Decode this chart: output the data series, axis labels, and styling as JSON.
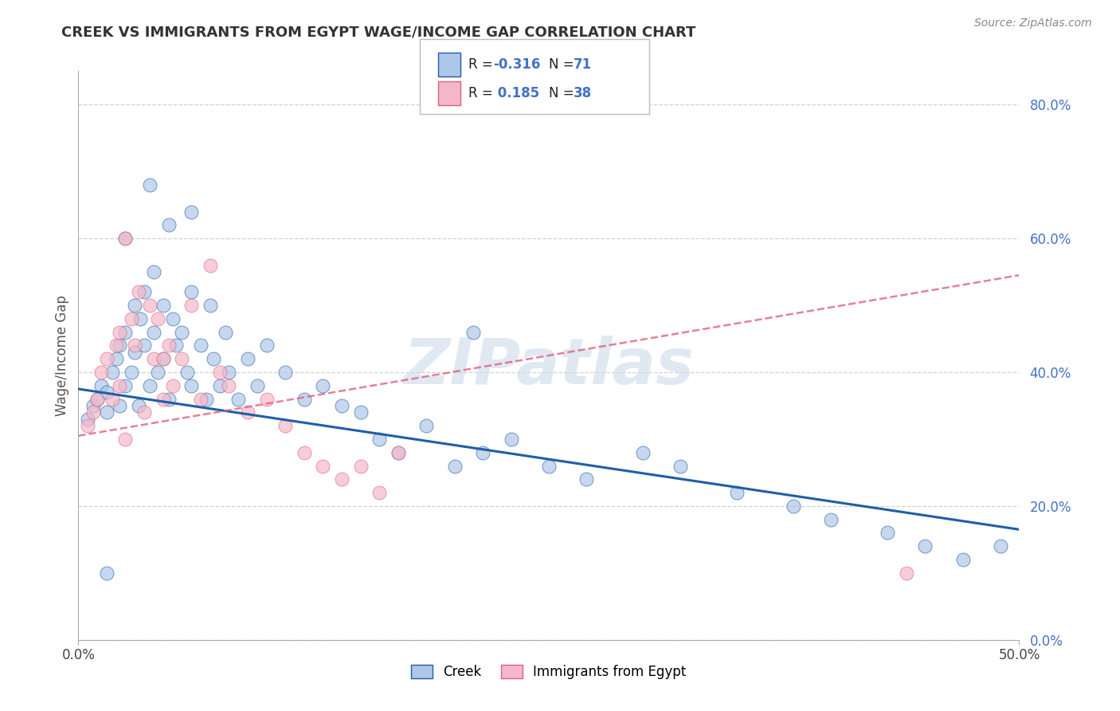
{
  "title": "CREEK VS IMMIGRANTS FROM EGYPT WAGE/INCOME GAP CORRELATION CHART",
  "source": "Source: ZipAtlas.com",
  "ylabel": "Wage/Income Gap",
  "watermark": "ZIPatlas",
  "legend_label1": "Creek",
  "legend_label2": "Immigrants from Egypt",
  "xmin": 0.0,
  "xmax": 0.5,
  "ymin": 0.0,
  "ymax": 0.85,
  "yticks": [
    0.0,
    0.2,
    0.4,
    0.6,
    0.8
  ],
  "ytick_labels": [
    "0.0%",
    "20.0%",
    "40.0%",
    "60.0%",
    "80.0%"
  ],
  "xticks": [
    0.0,
    0.5
  ],
  "xtick_labels": [
    "0.0%",
    "50.0%"
  ],
  "blue_color": "#aec6e8",
  "pink_color": "#f4b8c8",
  "blue_line_color": "#1f5fa6",
  "pink_line_color": "#e06080",
  "grid_color": "#cccccc",
  "background_color": "#ffffff",
  "blue_scatter_x": [
    0.005,
    0.008,
    0.01,
    0.012,
    0.015,
    0.015,
    0.018,
    0.02,
    0.022,
    0.022,
    0.025,
    0.025,
    0.028,
    0.03,
    0.03,
    0.032,
    0.033,
    0.035,
    0.035,
    0.038,
    0.04,
    0.04,
    0.042,
    0.045,
    0.045,
    0.048,
    0.05,
    0.052,
    0.055,
    0.058,
    0.06,
    0.06,
    0.065,
    0.068,
    0.07,
    0.072,
    0.075,
    0.078,
    0.08,
    0.085,
    0.09,
    0.095,
    0.1,
    0.11,
    0.12,
    0.13,
    0.14,
    0.15,
    0.16,
    0.17,
    0.185,
    0.2,
    0.215,
    0.23,
    0.25,
    0.27,
    0.3,
    0.32,
    0.35,
    0.38,
    0.4,
    0.43,
    0.45,
    0.47,
    0.49,
    0.21,
    0.06,
    0.048,
    0.038,
    0.025,
    0.015
  ],
  "blue_scatter_y": [
    0.33,
    0.35,
    0.36,
    0.38,
    0.34,
    0.37,
    0.4,
    0.42,
    0.35,
    0.44,
    0.38,
    0.46,
    0.4,
    0.43,
    0.5,
    0.35,
    0.48,
    0.44,
    0.52,
    0.38,
    0.46,
    0.55,
    0.4,
    0.42,
    0.5,
    0.36,
    0.48,
    0.44,
    0.46,
    0.4,
    0.52,
    0.38,
    0.44,
    0.36,
    0.5,
    0.42,
    0.38,
    0.46,
    0.4,
    0.36,
    0.42,
    0.38,
    0.44,
    0.4,
    0.36,
    0.38,
    0.35,
    0.34,
    0.3,
    0.28,
    0.32,
    0.26,
    0.28,
    0.3,
    0.26,
    0.24,
    0.28,
    0.26,
    0.22,
    0.2,
    0.18,
    0.16,
    0.14,
    0.12,
    0.14,
    0.46,
    0.64,
    0.62,
    0.68,
    0.6,
    0.1
  ],
  "pink_scatter_x": [
    0.005,
    0.008,
    0.01,
    0.012,
    0.015,
    0.018,
    0.02,
    0.022,
    0.022,
    0.025,
    0.028,
    0.03,
    0.032,
    0.035,
    0.038,
    0.04,
    0.042,
    0.045,
    0.048,
    0.05,
    0.055,
    0.06,
    0.065,
    0.07,
    0.075,
    0.08,
    0.09,
    0.1,
    0.11,
    0.12,
    0.13,
    0.14,
    0.15,
    0.16,
    0.17,
    0.025,
    0.045,
    0.44
  ],
  "pink_scatter_y": [
    0.32,
    0.34,
    0.36,
    0.4,
    0.42,
    0.36,
    0.44,
    0.38,
    0.46,
    0.3,
    0.48,
    0.44,
    0.52,
    0.34,
    0.5,
    0.42,
    0.48,
    0.36,
    0.44,
    0.38,
    0.42,
    0.5,
    0.36,
    0.56,
    0.4,
    0.38,
    0.34,
    0.36,
    0.32,
    0.28,
    0.26,
    0.24,
    0.26,
    0.22,
    0.28,
    0.6,
    0.42,
    0.1
  ],
  "blue_line_x0": 0.0,
  "blue_line_x1": 0.5,
  "blue_line_y0": 0.375,
  "blue_line_y1": 0.165,
  "pink_line_x0": 0.0,
  "pink_line_x1": 0.5,
  "pink_line_y0": 0.305,
  "pink_line_y1": 0.545
}
